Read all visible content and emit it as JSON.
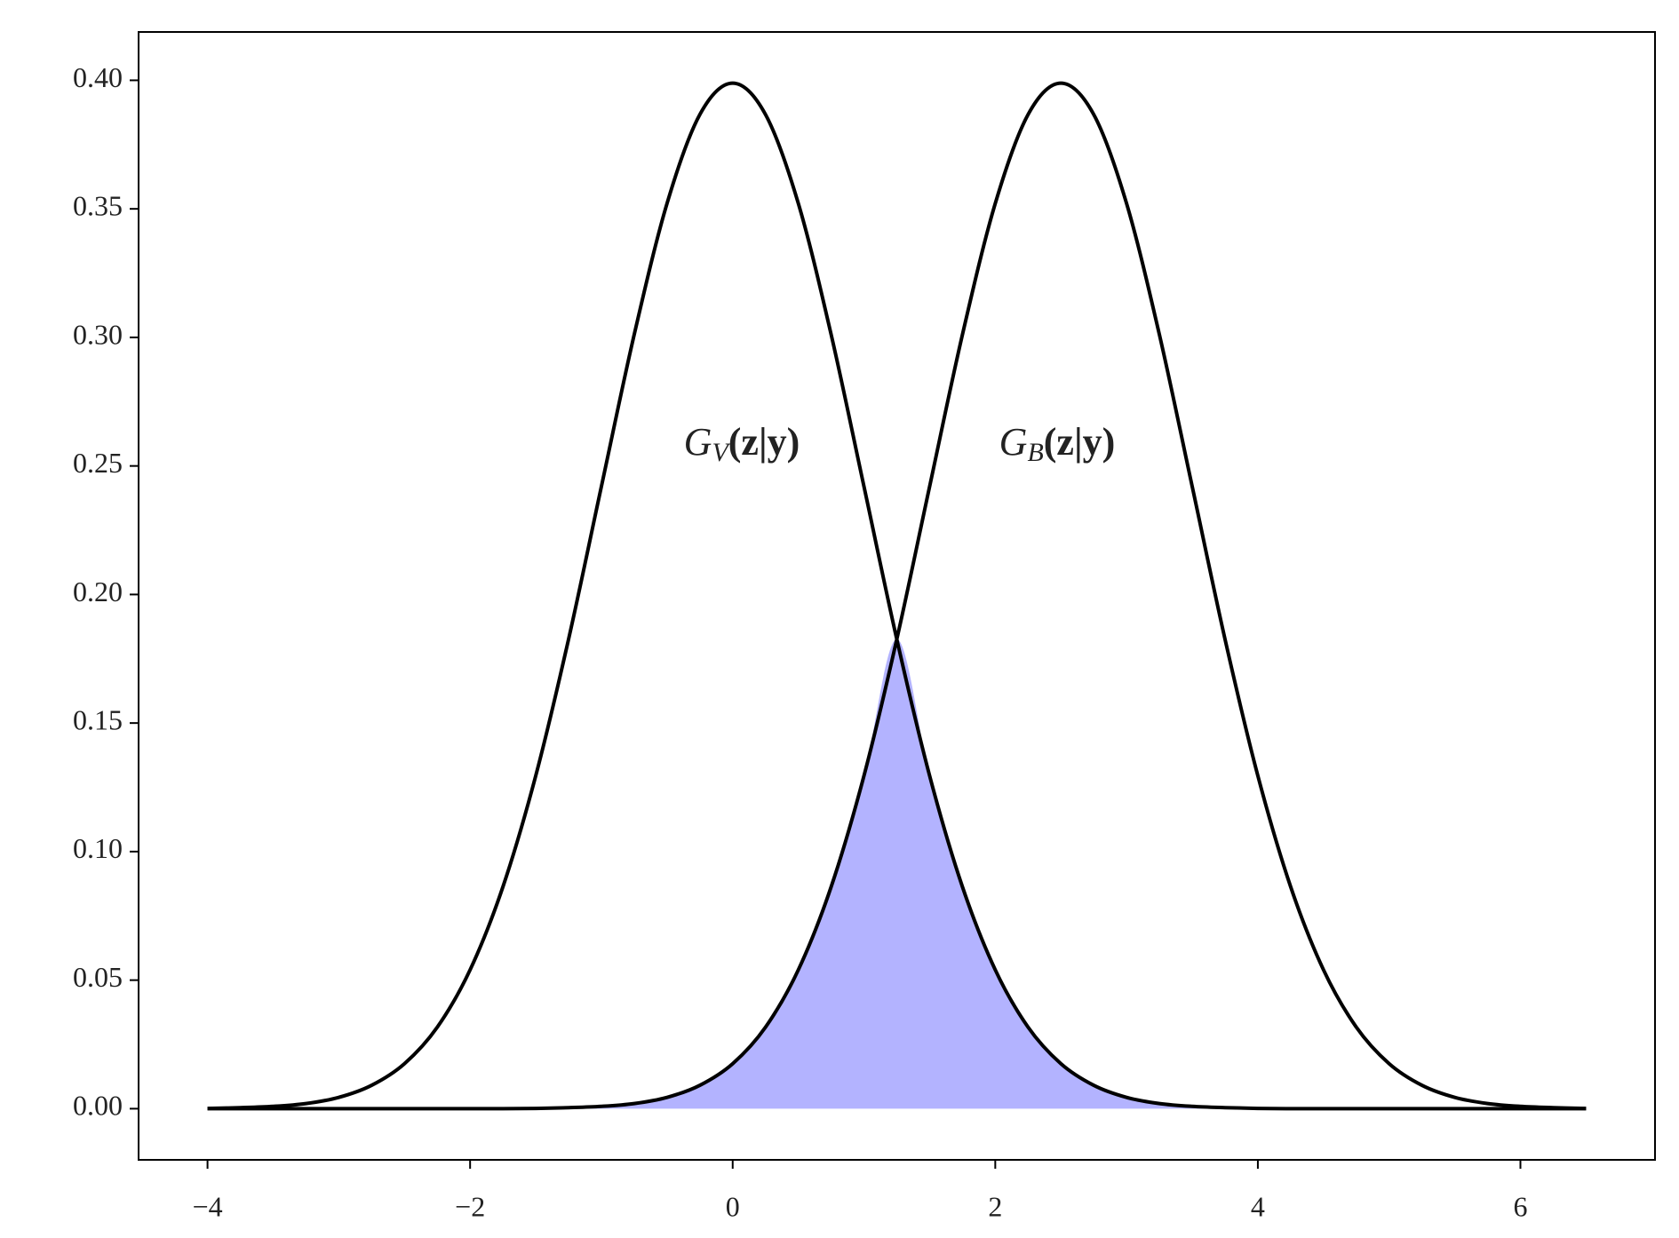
{
  "chart_data": {
    "type": "line",
    "x": [
      -4,
      -3.75,
      -3.5,
      -3.25,
      -3,
      -2.75,
      -2.5,
      -2.25,
      -2,
      -1.75,
      -1.5,
      -1.25,
      -1,
      -0.75,
      -0.5,
      -0.25,
      0,
      0.25,
      0.5,
      0.75,
      1,
      1.25,
      1.5,
      1.75,
      2,
      2.25,
      2.5,
      2.75,
      3,
      3.25,
      3.5,
      3.75,
      4,
      4.25,
      4.5,
      4.75,
      5,
      5.25,
      5.5,
      5.75,
      6,
      6.25,
      6.5
    ],
    "series": [
      {
        "color": "#000000",
        "values": [
          0.0001,
          0.0004,
          0.0009,
          0.002,
          0.0044,
          0.0091,
          0.0175,
          0.0317,
          0.054,
          0.0863,
          0.1295,
          0.1826,
          0.242,
          0.3011,
          0.3521,
          0.3867,
          0.3989,
          0.3867,
          0.3521,
          0.3011,
          0.242,
          0.1826,
          0.1295,
          0.0863,
          0.054,
          0.0317,
          0.0175,
          0.0091,
          0.0044,
          0.002,
          0.0009,
          0.0004,
          0.0001,
          0,
          0,
          0,
          0,
          0,
          0,
          0,
          0,
          0,
          0
        ]
      },
      {
        "color": "#000000",
        "values": [
          0,
          0,
          0,
          0,
          0,
          0,
          0,
          0,
          0,
          0,
          0.0001,
          0.0004,
          0.0009,
          0.002,
          0.0044,
          0.0091,
          0.0175,
          0.0317,
          0.054,
          0.0863,
          0.1295,
          0.1826,
          0.242,
          0.3011,
          0.3521,
          0.3867,
          0.3989,
          0.3867,
          0.3521,
          0.3011,
          0.242,
          0.1826,
          0.1295,
          0.0863,
          0.054,
          0.0317,
          0.0175,
          0.0091,
          0.0044,
          0.002,
          0.0009,
          0.0004,
          0.0001
        ]
      }
    ],
    "overlap_color": "#b3b3ff",
    "annotations": [
      {
        "symbol": "G",
        "subscript": "V",
        "args": "(z|y)"
      },
      {
        "symbol": "G",
        "subscript": "B",
        "args": "(z|y)"
      }
    ],
    "xlim": [
      -4.525,
      7.025
    ],
    "ylim": [
      -0.0199,
      0.4188
    ],
    "xticks": [
      {
        "value": -4,
        "label": "−4"
      },
      {
        "value": -2,
        "label": "−2"
      },
      0,
      2,
      4,
      6
    ],
    "yticks": [
      {
        "value": 0,
        "label": "0.00"
      },
      {
        "value": 0.05,
        "label": "0.05"
      },
      {
        "value": 0.1,
        "label": "0.10"
      },
      {
        "value": 0.15,
        "label": "0.15"
      },
      {
        "value": 0.2,
        "label": "0.20"
      },
      {
        "value": 0.25,
        "label": "0.25"
      },
      {
        "value": 0.3,
        "label": "0.30"
      },
      {
        "value": 0.35,
        "label": "0.35"
      },
      {
        "value": 0.4,
        "label": "0.40"
      }
    ],
    "grid": false
  }
}
